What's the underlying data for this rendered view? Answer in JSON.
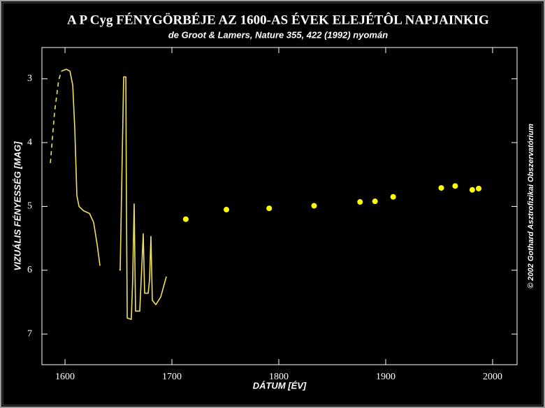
{
  "chart_data": {
    "type": "line",
    "title": "A P Cyg FÉNYGÖRBÉJE AZ 1600-AS ÉVEK ELEJÉTÔL NAPJAINKIG",
    "subtitle": "de Groot & Lamers, Nature 355, 422 (1992) nyomán",
    "x_label": "DÁTUM [ÉV]",
    "y_label": "VIZUÁLIS FÉNYESSÉG [MAG]",
    "credit": "© 2002 Gothard Asztrofizikai Obszervatórium",
    "xlim": [
      1578.4,
      2022.9
    ],
    "xticks": [
      1600,
      1700,
      1800,
      1900,
      2000
    ],
    "ylim": [
      2.51,
      7.48
    ],
    "yticks": [
      3,
      4,
      5,
      6,
      7
    ],
    "y_inverted": true,
    "series": [
      {
        "mode": "dashed",
        "color": "#f0e060",
        "x": [
          1586.3,
          1590.2,
          1594.1,
          1596.7
        ],
        "values": [
          4.32,
          3.52,
          3.02,
          2.88
        ]
      },
      {
        "mode": "solid",
        "color": "#f0e060",
        "x": [
          1596.7,
          1601.3,
          1604.6,
          1607.2,
          1609.2,
          1611.1,
          1613.1,
          1617.6,
          1622.9,
          1626.8,
          1630.1,
          1632.7,
          null,
          1651.0,
          1651.6,
          1654.9,
          1656.9,
          1657.5,
          1658.2,
          1662.0,
          1663.3,
          1664.7,
          1666.0,
          1669.9,
          1671.9,
          1673.2,
          1674.5,
          1677.8,
          1679.1,
          1680.4,
          1681.7,
          1685.0,
          1689.5,
          1694.8
        ],
        "values": [
          2.88,
          2.85,
          2.88,
          3.1,
          3.8,
          4.83,
          5.0,
          5.07,
          5.11,
          5.25,
          5.6,
          5.93,
          null,
          5.98,
          6.0,
          2.97,
          2.97,
          5.05,
          6.75,
          6.77,
          6.15,
          4.96,
          6.64,
          6.64,
          5.93,
          5.43,
          6.36,
          6.36,
          6.14,
          5.47,
          6.47,
          6.54,
          6.42,
          6.1
        ]
      },
      {
        "mode": "markers",
        "color": "#ffff00",
        "x": [
          1713,
          1751,
          1791,
          1833,
          1876,
          1890,
          1907,
          1952,
          1965,
          1981,
          1987
        ],
        "values": [
          5.2,
          5.05,
          5.03,
          4.99,
          4.93,
          4.92,
          4.85,
          4.71,
          4.68,
          4.74,
          4.72
        ]
      }
    ]
  }
}
